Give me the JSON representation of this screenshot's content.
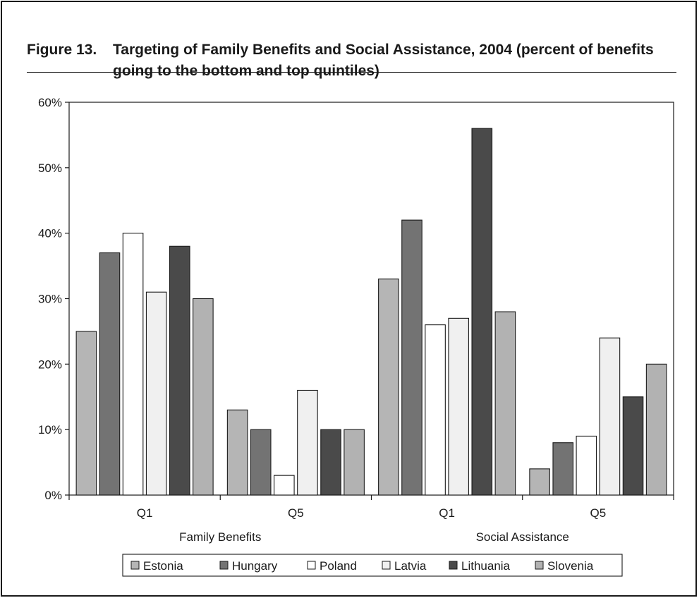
{
  "figure": {
    "number": "Figure 13.",
    "title": "Targeting of Family Benefits and Social Assistance, 2004 (percent of benefits going to the bottom and top quintiles)"
  },
  "chart_data": {
    "type": "bar",
    "groups": [
      {
        "name": "Family Benefits",
        "categories": [
          "Q1",
          "Q5"
        ]
      },
      {
        "name": "Social Assistance",
        "categories": [
          "Q1",
          "Q5"
        ]
      }
    ],
    "categories": [
      "Q1",
      "Q5",
      "Q1",
      "Q5"
    ],
    "series": [
      {
        "name": "Estonia",
        "color": "#b5b5b5",
        "values": [
          25,
          13,
          33,
          4
        ]
      },
      {
        "name": "Hungary",
        "color": "#737373",
        "values": [
          37,
          10,
          42,
          8
        ]
      },
      {
        "name": "Poland",
        "color": "#ffffff",
        "values": [
          40,
          3,
          26,
          9
        ]
      },
      {
        "name": "Latvia",
        "color": "#f0f0f0",
        "values": [
          31,
          16,
          27,
          24
        ]
      },
      {
        "name": "Lithuania",
        "color": "#4a4a4a",
        "values": [
          38,
          10,
          56,
          15
        ]
      },
      {
        "name": "Slovenia",
        "color": "#b2b2b2",
        "values": [
          30,
          10,
          28,
          20
        ]
      }
    ],
    "yticks": [
      "0%",
      "10%",
      "20%",
      "30%",
      "40%",
      "50%",
      "60%"
    ],
    "ylim": [
      0,
      60
    ],
    "legend_position": "bottom",
    "grid": false
  }
}
